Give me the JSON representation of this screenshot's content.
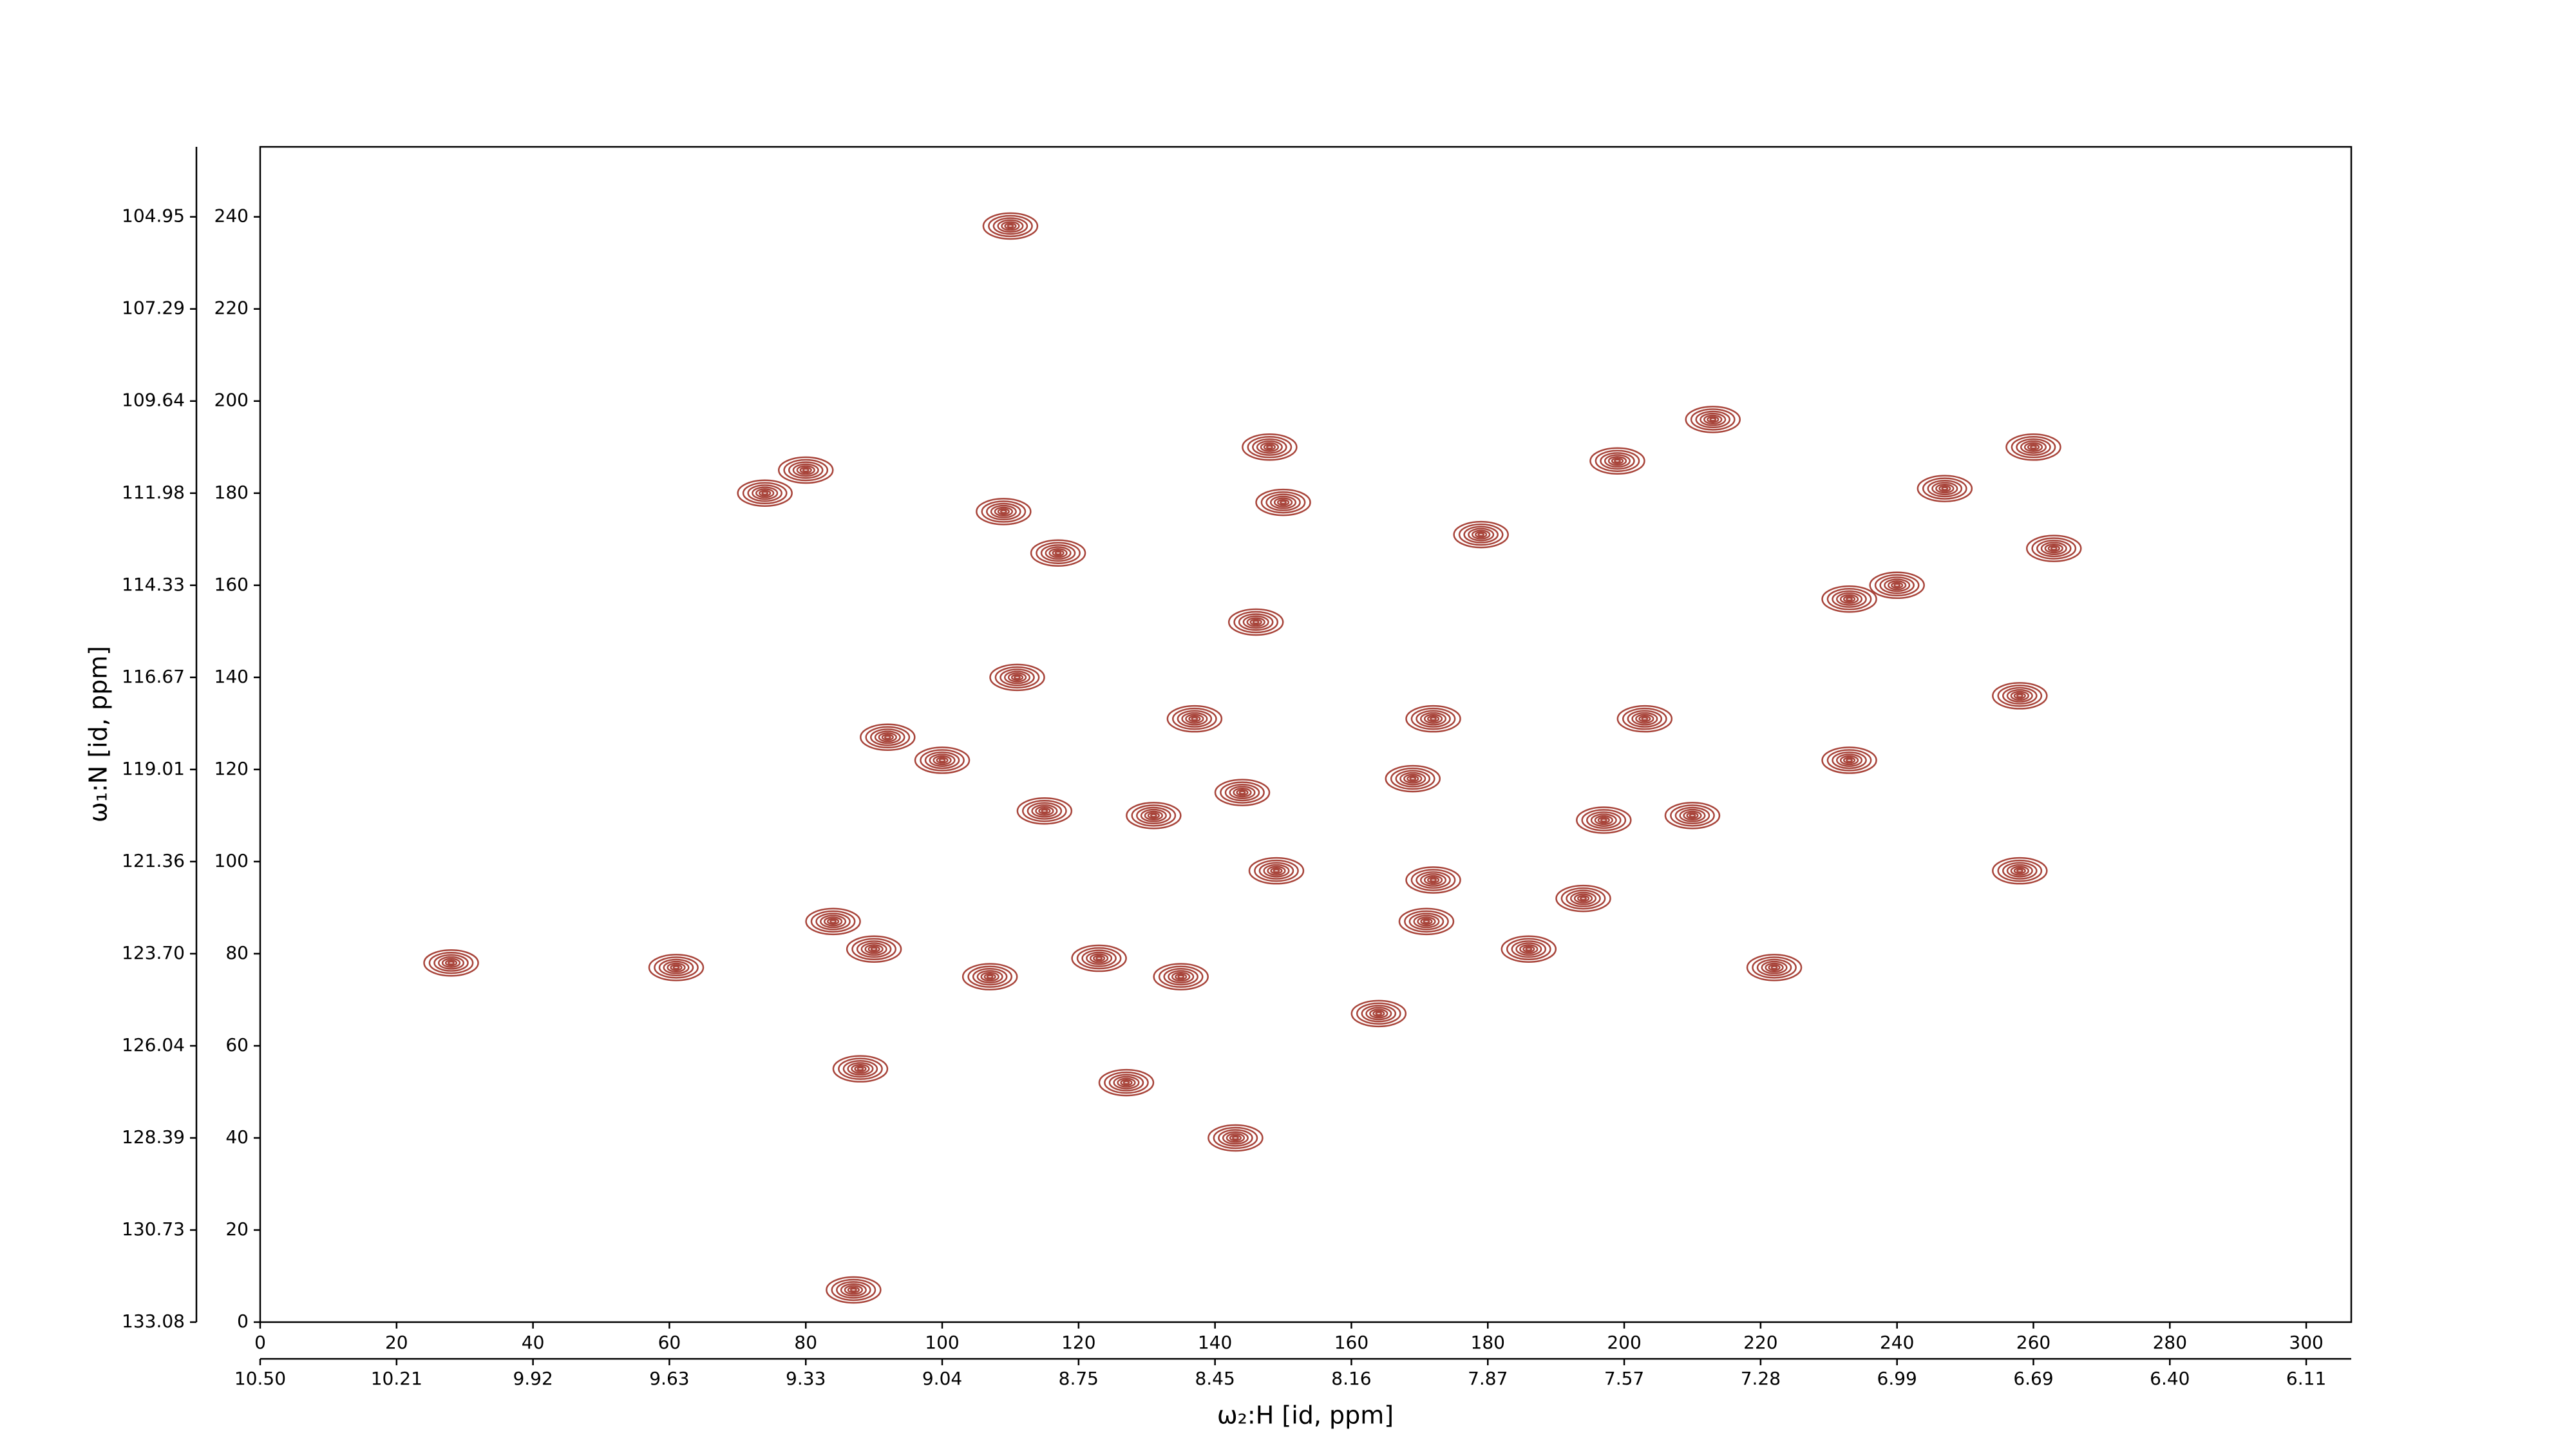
{
  "chart_data": {
    "type": "contour",
    "x_label": "ω₂:H [id, ppm]",
    "y_label": "ω₁:N [id, ppm]",
    "xlim": [
      0,
      306.6
    ],
    "ylim": [
      0,
      255.2
    ],
    "xticks": [
      0,
      20,
      40,
      60,
      80,
      100,
      120,
      140,
      160,
      180,
      200,
      220,
      240,
      260,
      280,
      300
    ],
    "yticks": [
      0,
      20,
      40,
      60,
      80,
      100,
      120,
      140,
      160,
      180,
      200,
      220,
      240
    ],
    "x2ticks": [
      {
        "value": 0,
        "label": "10.50"
      },
      {
        "value": 20,
        "label": "10.21"
      },
      {
        "value": 40,
        "label": "9.92"
      },
      {
        "value": 60,
        "label": "9.63"
      },
      {
        "value": 80,
        "label": "9.33"
      },
      {
        "value": 100,
        "label": "9.04"
      },
      {
        "value": 120,
        "label": "8.75"
      },
      {
        "value": 140,
        "label": "8.45"
      },
      {
        "value": 160,
        "label": "8.16"
      },
      {
        "value": 180,
        "label": "7.87"
      },
      {
        "value": 200,
        "label": "7.57"
      },
      {
        "value": 220,
        "label": "7.28"
      },
      {
        "value": 240,
        "label": "6.99"
      },
      {
        "value": 260,
        "label": "6.69"
      },
      {
        "value": 280,
        "label": "6.40"
      },
      {
        "value": 300,
        "label": "6.11"
      }
    ],
    "y2ticks": [
      {
        "value": 0,
        "label": "133.08"
      },
      {
        "value": 20,
        "label": "130.73"
      },
      {
        "value": 40,
        "label": "128.39"
      },
      {
        "value": 60,
        "label": "126.04"
      },
      {
        "value": 80,
        "label": "123.70"
      },
      {
        "value": 100,
        "label": "121.36"
      },
      {
        "value": 120,
        "label": "119.01"
      },
      {
        "value": 140,
        "label": "116.67"
      },
      {
        "value": 160,
        "label": "114.33"
      },
      {
        "value": 180,
        "label": "111.98"
      },
      {
        "value": 200,
        "label": "109.64"
      },
      {
        "value": 220,
        "label": "107.29"
      },
      {
        "value": 240,
        "label": "104.95"
      }
    ],
    "color": "#a8443a",
    "peaks": {
      "x": [
        110,
        74,
        80,
        109,
        117,
        150,
        148,
        179,
        213,
        199,
        247,
        260,
        263,
        233,
        240,
        146,
        111,
        92,
        100,
        137,
        172,
        203,
        258,
        233,
        115,
        131,
        144,
        169,
        210,
        197,
        258,
        149,
        172,
        194,
        84,
        90,
        28,
        61,
        123,
        135,
        107,
        222,
        164,
        88,
        127,
        143,
        87,
        186,
        171
      ],
      "y": [
        238,
        180,
        185,
        176,
        167,
        178,
        190,
        171,
        196,
        187,
        181,
        190,
        168,
        157,
        160,
        152,
        140,
        127,
        122,
        131,
        131,
        131,
        136,
        122,
        111,
        110,
        115,
        118,
        110,
        109,
        98,
        98,
        96,
        92,
        87,
        81,
        78,
        77,
        79,
        75,
        75,
        77,
        67,
        55,
        52,
        40,
        7,
        81,
        87
      ]
    }
  }
}
